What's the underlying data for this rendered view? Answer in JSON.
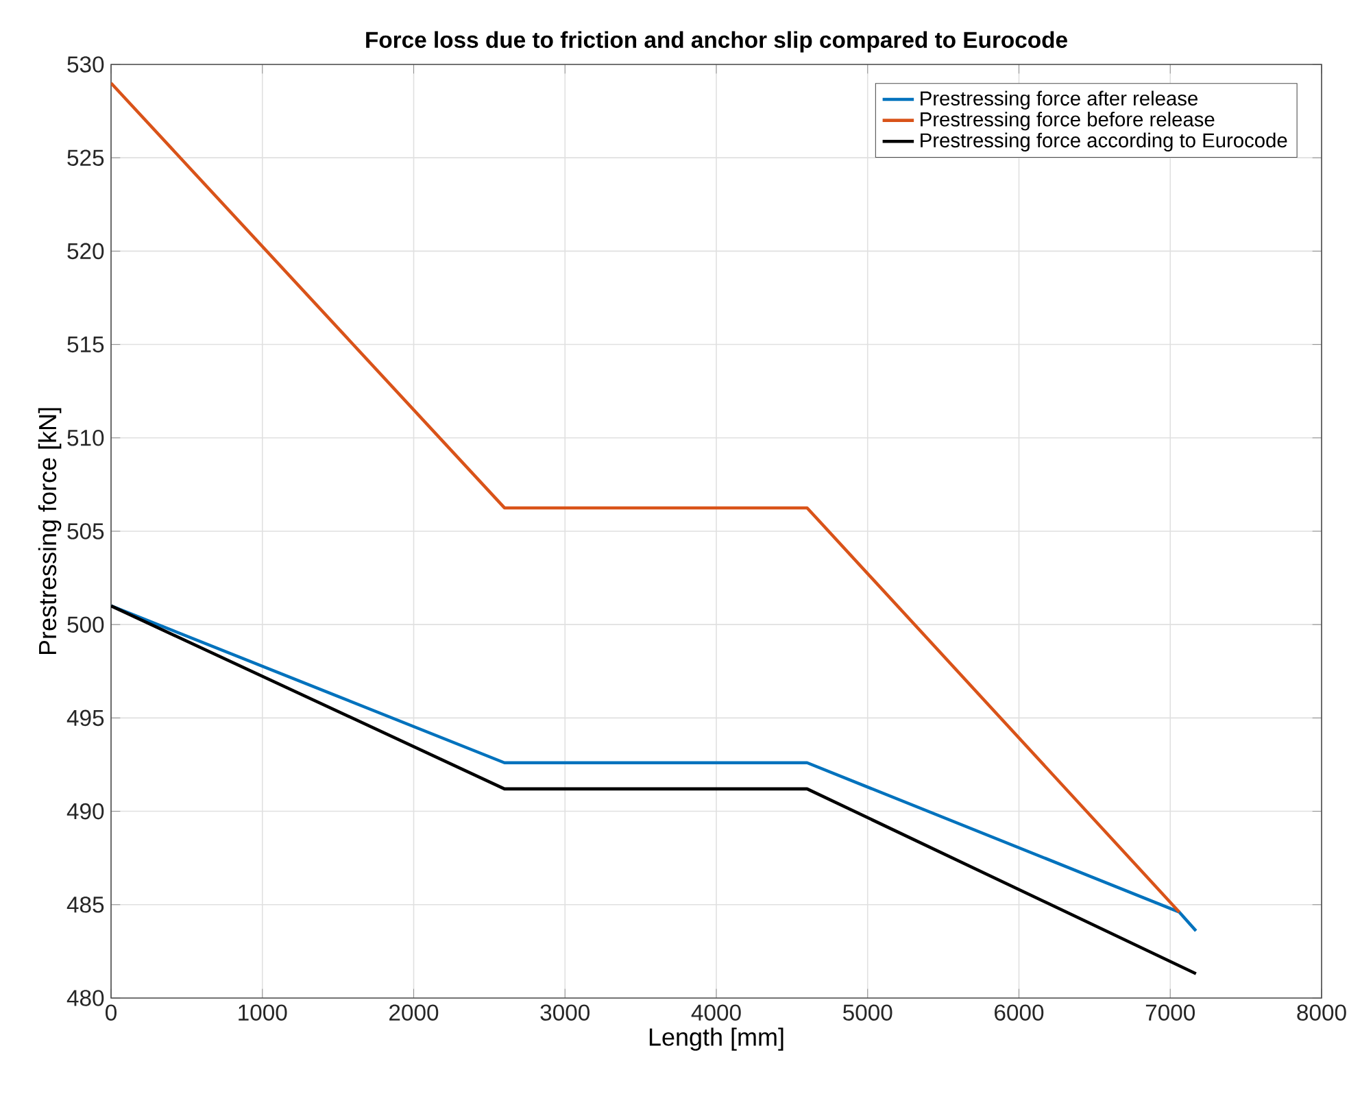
{
  "chart_data": {
    "type": "line",
    "title": "Force loss due to friction and anchor slip compared to Eurocode",
    "xlabel": "Length [mm]",
    "ylabel": "Prestressing force [kN]",
    "series": [
      {
        "name": "Prestressing force after release",
        "color": "#0072bd",
        "x": [
          0,
          2600,
          4600,
          7060,
          7170
        ],
        "values": [
          501,
          492.6,
          492.6,
          484.6,
          483.6
        ]
      },
      {
        "name": "Prestressing force before release",
        "color": "#d95319",
        "x": [
          0,
          2600,
          4600,
          7060
        ],
        "values": [
          529,
          506.25,
          506.25,
          484.6
        ]
      },
      {
        "name": "Prestressing force according to Eurocode",
        "color": "#000000",
        "x": [
          0,
          2600,
          4600,
          7170
        ],
        "values": [
          501,
          491.2,
          491.2,
          481.3
        ]
      }
    ],
    "xlim": [
      0,
      8000
    ],
    "ylim": [
      480,
      530
    ],
    "xticks": [
      0,
      1000,
      2000,
      3000,
      4000,
      5000,
      6000,
      7000,
      8000
    ],
    "yticks": [
      480,
      485,
      490,
      495,
      500,
      505,
      510,
      515,
      520,
      525,
      530
    ],
    "grid": true,
    "legend": "top right",
    "line_style": "solid",
    "marker": "none"
  }
}
